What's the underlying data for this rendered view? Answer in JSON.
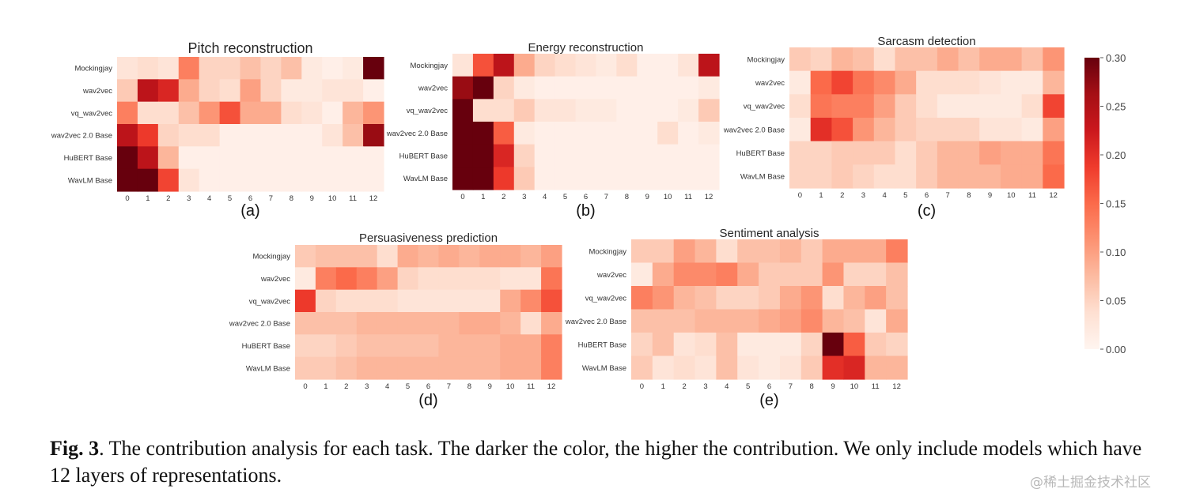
{
  "figure": {
    "caption_label": "Fig. 3",
    "caption_text": ". The contribution analysis for each task. The darker the color, the higher the contribution. We only include models which have 12 layers of representations.",
    "watermark": "@稀土掘金技术社区"
  },
  "chart_data": [
    {
      "type": "heatmap",
      "id": "a",
      "panel_label": "(a)",
      "title": "Pitch reconstruction",
      "xlabel": "",
      "ylabel": "",
      "x": [
        "0",
        "1",
        "2",
        "3",
        "4",
        "5",
        "6",
        "7",
        "8",
        "9",
        "10",
        "11",
        "12"
      ],
      "y": [
        "Mockingjay",
        "wav2vec",
        "vq_wav2vec",
        "wav2vec 2.0 Base",
        "HuBERT Base",
        "WavLM Base"
      ],
      "values": [
        [
          0.03,
          0.04,
          0.03,
          0.13,
          0.05,
          0.05,
          0.07,
          0.05,
          0.07,
          0.02,
          0.01,
          0.02,
          0.3
        ],
        [
          0.06,
          0.24,
          0.21,
          0.09,
          0.05,
          0.04,
          0.1,
          0.05,
          0.02,
          0.02,
          0.03,
          0.03,
          0.01
        ],
        [
          0.13,
          0.04,
          0.04,
          0.07,
          0.11,
          0.17,
          0.09,
          0.09,
          0.04,
          0.03,
          0.01,
          0.08,
          0.11
        ],
        [
          0.24,
          0.19,
          0.05,
          0.04,
          0.04,
          0.01,
          0.01,
          0.01,
          0.01,
          0.01,
          0.03,
          0.07,
          0.27
        ],
        [
          0.3,
          0.24,
          0.08,
          0.01,
          0.01,
          0.01,
          0.01,
          0.01,
          0.01,
          0.01,
          0.01,
          0.01,
          0.01
        ],
        [
          0.3,
          0.3,
          0.18,
          0.03,
          0.01,
          0.01,
          0.01,
          0.01,
          0.01,
          0.01,
          0.01,
          0.01,
          0.01
        ]
      ],
      "vmin": 0.0,
      "vmax": 0.3,
      "colormap": "Reds"
    },
    {
      "type": "heatmap",
      "id": "b",
      "panel_label": "(b)",
      "title": "Energy reconstruction",
      "xlabel": "",
      "ylabel": "",
      "x": [
        "0",
        "1",
        "2",
        "3",
        "4",
        "5",
        "6",
        "7",
        "8",
        "9",
        "10",
        "11",
        "12"
      ],
      "y": [
        "Mockingjay",
        "wav2vec",
        "vq_wav2vec",
        "wav2vec 2.0 Base",
        "HuBERT Base",
        "WavLM Base"
      ],
      "values": [
        [
          0.03,
          0.17,
          0.24,
          0.09,
          0.05,
          0.04,
          0.03,
          0.02,
          0.04,
          0.01,
          0.01,
          0.03,
          0.24
        ],
        [
          0.27,
          0.3,
          0.05,
          0.02,
          0.01,
          0.01,
          0.01,
          0.01,
          0.01,
          0.01,
          0.01,
          0.01,
          0.02
        ],
        [
          0.3,
          0.04,
          0.04,
          0.06,
          0.03,
          0.03,
          0.02,
          0.02,
          0.01,
          0.01,
          0.01,
          0.02,
          0.06
        ],
        [
          0.3,
          0.3,
          0.16,
          0.02,
          0.01,
          0.01,
          0.01,
          0.01,
          0.01,
          0.01,
          0.04,
          0.01,
          0.02
        ],
        [
          0.3,
          0.3,
          0.21,
          0.05,
          0.01,
          0.01,
          0.01,
          0.01,
          0.01,
          0.01,
          0.01,
          0.01,
          0.01
        ],
        [
          0.3,
          0.3,
          0.19,
          0.06,
          0.01,
          0.01,
          0.01,
          0.01,
          0.01,
          0.01,
          0.01,
          0.01,
          0.01
        ]
      ],
      "vmin": 0.0,
      "vmax": 0.3,
      "colormap": "Reds"
    },
    {
      "type": "heatmap",
      "id": "c",
      "panel_label": "(c)",
      "title": "Sarcasm detection",
      "xlabel": "",
      "ylabel": "",
      "x": [
        "0",
        "1",
        "2",
        "3",
        "4",
        "5",
        "6",
        "7",
        "8",
        "9",
        "10",
        "11",
        "12"
      ],
      "y": [
        "Mockingjay",
        "wav2vec",
        "vq_wav2vec",
        "wav2vec 2.0 Base",
        "HuBERT Base",
        "WavLM Base"
      ],
      "values": [
        [
          0.06,
          0.05,
          0.08,
          0.07,
          0.04,
          0.07,
          0.07,
          0.09,
          0.07,
          0.09,
          0.09,
          0.07,
          0.11
        ],
        [
          0.02,
          0.15,
          0.18,
          0.14,
          0.12,
          0.09,
          0.04,
          0.04,
          0.04,
          0.03,
          0.02,
          0.02,
          0.08
        ],
        [
          0.04,
          0.14,
          0.13,
          0.13,
          0.1,
          0.06,
          0.04,
          0.02,
          0.02,
          0.02,
          0.02,
          0.04,
          0.18
        ],
        [
          0.02,
          0.2,
          0.17,
          0.11,
          0.08,
          0.06,
          0.05,
          0.05,
          0.05,
          0.03,
          0.03,
          0.02,
          0.1
        ],
        [
          0.05,
          0.05,
          0.06,
          0.06,
          0.06,
          0.04,
          0.06,
          0.08,
          0.08,
          0.1,
          0.09,
          0.09,
          0.14
        ],
        [
          0.05,
          0.05,
          0.06,
          0.05,
          0.04,
          0.04,
          0.06,
          0.08,
          0.08,
          0.08,
          0.09,
          0.09,
          0.15
        ]
      ],
      "vmin": 0.0,
      "vmax": 0.3,
      "colormap": "Reds"
    },
    {
      "type": "heatmap",
      "id": "d",
      "panel_label": "(d)",
      "title": "Persuasiveness prediction",
      "xlabel": "",
      "ylabel": "",
      "x": [
        "0",
        "1",
        "2",
        "3",
        "4",
        "5",
        "6",
        "7",
        "8",
        "9",
        "10",
        "11",
        "12"
      ],
      "y": [
        "Mockingjay",
        "wav2vec",
        "vq_wav2vec",
        "wav2vec 2.0 Base",
        "HuBERT Base",
        "WavLM Base"
      ],
      "values": [
        [
          0.06,
          0.07,
          0.07,
          0.07,
          0.04,
          0.09,
          0.08,
          0.09,
          0.08,
          0.09,
          0.09,
          0.08,
          0.1
        ],
        [
          0.02,
          0.13,
          0.15,
          0.13,
          0.1,
          0.05,
          0.04,
          0.04,
          0.04,
          0.04,
          0.03,
          0.03,
          0.14
        ],
        [
          0.19,
          0.05,
          0.04,
          0.04,
          0.04,
          0.03,
          0.03,
          0.03,
          0.03,
          0.03,
          0.09,
          0.12,
          0.17
        ],
        [
          0.07,
          0.07,
          0.07,
          0.08,
          0.08,
          0.08,
          0.08,
          0.08,
          0.09,
          0.09,
          0.08,
          0.04,
          0.09
        ],
        [
          0.05,
          0.05,
          0.06,
          0.07,
          0.07,
          0.07,
          0.07,
          0.08,
          0.08,
          0.08,
          0.09,
          0.09,
          0.13
        ],
        [
          0.06,
          0.06,
          0.07,
          0.08,
          0.08,
          0.08,
          0.08,
          0.08,
          0.08,
          0.08,
          0.09,
          0.09,
          0.13
        ]
      ],
      "vmin": 0.0,
      "vmax": 0.3,
      "colormap": "Reds"
    },
    {
      "type": "heatmap",
      "id": "e",
      "panel_label": "(e)",
      "title": "Sentiment analysis",
      "xlabel": "",
      "ylabel": "",
      "x": [
        "0",
        "1",
        "2",
        "3",
        "4",
        "5",
        "6",
        "7",
        "8",
        "9",
        "10",
        "11",
        "12"
      ],
      "y": [
        "Mockingjay",
        "wav2vec",
        "vq_wav2vec",
        "wav2vec 2.0 Base",
        "HuBERT Base",
        "WavLM Base"
      ],
      "values": [
        [
          0.06,
          0.06,
          0.1,
          0.08,
          0.04,
          0.07,
          0.07,
          0.08,
          0.06,
          0.09,
          0.09,
          0.09,
          0.13
        ],
        [
          0.02,
          0.09,
          0.12,
          0.12,
          0.13,
          0.09,
          0.06,
          0.06,
          0.06,
          0.11,
          0.05,
          0.05,
          0.07
        ],
        [
          0.13,
          0.11,
          0.08,
          0.07,
          0.05,
          0.05,
          0.06,
          0.09,
          0.11,
          0.04,
          0.08,
          0.1,
          0.07
        ],
        [
          0.07,
          0.07,
          0.07,
          0.08,
          0.08,
          0.08,
          0.09,
          0.1,
          0.12,
          0.08,
          0.07,
          0.03,
          0.09
        ],
        [
          0.05,
          0.07,
          0.03,
          0.04,
          0.07,
          0.02,
          0.02,
          0.02,
          0.05,
          0.3,
          0.16,
          0.06,
          0.05
        ],
        [
          0.06,
          0.03,
          0.04,
          0.03,
          0.07,
          0.03,
          0.02,
          0.03,
          0.06,
          0.2,
          0.21,
          0.08,
          0.08
        ]
      ],
      "vmin": 0.0,
      "vmax": 0.3,
      "colormap": "Reds"
    }
  ],
  "colorbar": {
    "vmin": 0.0,
    "vmax": 0.3,
    "ticks": [
      "0.00",
      "0.05",
      "0.10",
      "0.15",
      "0.20",
      "0.25",
      "0.30"
    ],
    "colormap": "Reds"
  }
}
